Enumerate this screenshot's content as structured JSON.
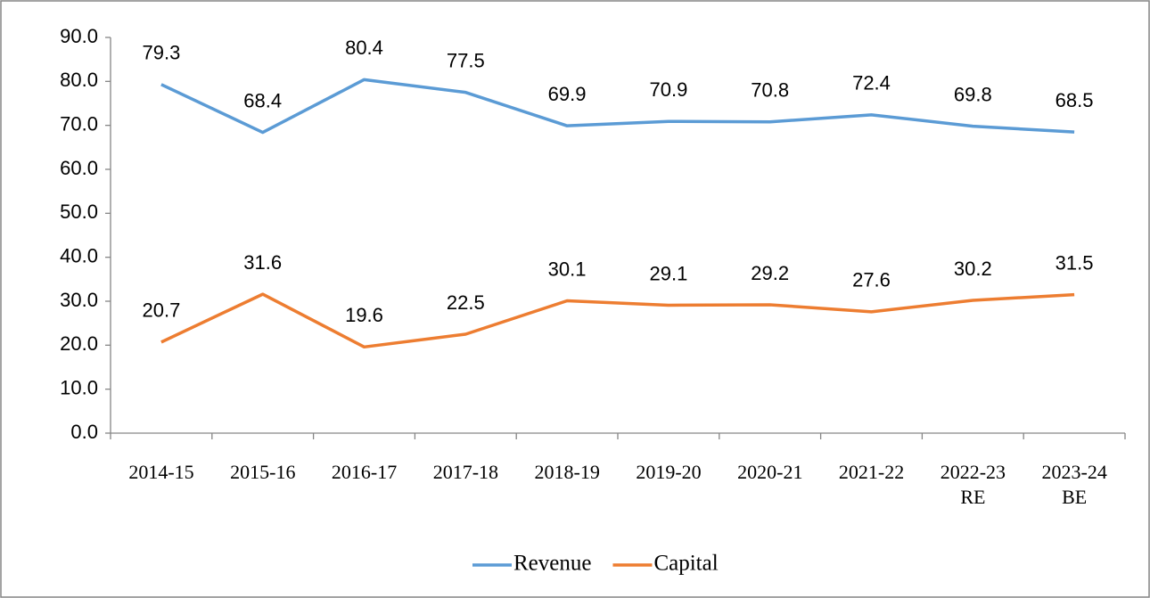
{
  "chart_data": {
    "type": "line",
    "categories": [
      "2014-15",
      "2015-16",
      "2016-17",
      "2017-18",
      "2018-19",
      "2019-20",
      "2020-21",
      "2021-22",
      "2022-23\nRE",
      "2023-24\nBE"
    ],
    "series": [
      {
        "name": "Revenue",
        "color": "#5b9bd5",
        "values": [
          79.3,
          68.4,
          80.4,
          77.5,
          69.9,
          70.9,
          70.8,
          72.4,
          69.8,
          68.5
        ]
      },
      {
        "name": "Capital",
        "color": "#ed7d31",
        "values": [
          20.7,
          31.6,
          19.6,
          22.5,
          30.1,
          29.1,
          29.2,
          27.6,
          30.2,
          31.5
        ]
      }
    ],
    "ylim": [
      0,
      90
    ],
    "yticks": [
      {
        "value": 0,
        "label": "0.0"
      },
      {
        "value": 10,
        "label": "10.0"
      },
      {
        "value": 20,
        "label": "20.0"
      },
      {
        "value": 30,
        "label": "30.0"
      },
      {
        "value": 40,
        "label": "40.0"
      },
      {
        "value": 50,
        "label": "50.0"
      },
      {
        "value": 60,
        "label": "60.0"
      },
      {
        "value": 70,
        "label": "70.0"
      },
      {
        "value": 80,
        "label": "80.0"
      },
      {
        "value": 90,
        "label": "90.0"
      }
    ],
    "legend": "bottom"
  }
}
